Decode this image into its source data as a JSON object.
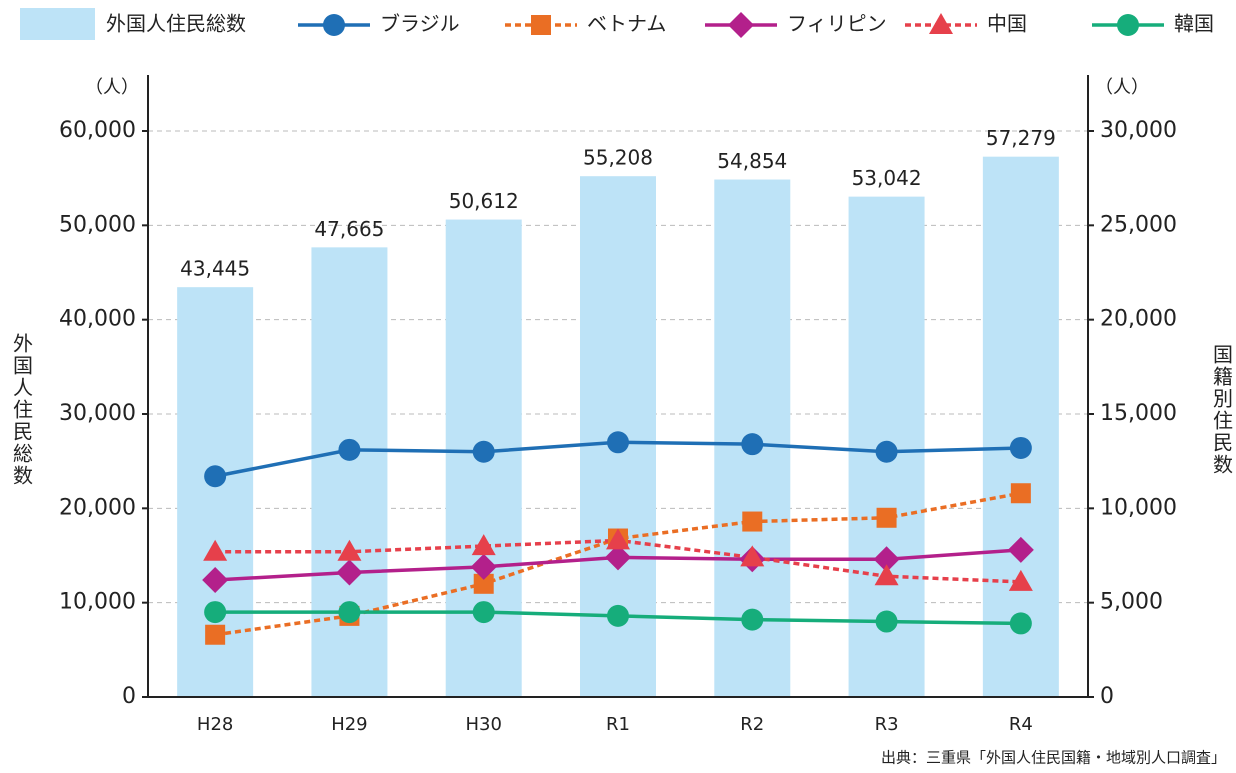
{
  "chart_data": {
    "type": "bar_line",
    "categories": [
      "H28",
      "H29",
      "H30",
      "R1",
      "R2",
      "R3",
      "R4"
    ],
    "bar": {
      "name": "外国人住民総数",
      "color": "#bde3f7",
      "values": [
        43445,
        47665,
        50612,
        55208,
        54854,
        53042,
        57279
      ],
      "value_labels": [
        "43,445",
        "47,665",
        "50,612",
        "55,208",
        "54,854",
        "53,042",
        "57,279"
      ]
    },
    "series": [
      {
        "name": "ブラジル",
        "color": "#1f6fb5",
        "marker": "circle",
        "line_style": "solid",
        "axis": "y2",
        "values": [
          11700,
          13100,
          13000,
          13500,
          13400,
          13000,
          13200
        ]
      },
      {
        "name": "ベトナム",
        "color": "#ea6e24",
        "marker": "square",
        "line_style": "dashed",
        "axis": "y2",
        "values": [
          3300,
          4300,
          6000,
          8400,
          9300,
          9500,
          10800
        ]
      },
      {
        "name": "フィリピン",
        "color": "#b3208b",
        "marker": "diamond",
        "line_style": "solid",
        "axis": "y2",
        "values": [
          6200,
          6600,
          6900,
          7400,
          7300,
          7300,
          7800
        ]
      },
      {
        "name": "中国",
        "color": "#e6404b",
        "marker": "triangle",
        "line_style": "dashed",
        "axis": "y2",
        "values": [
          7700,
          7700,
          8000,
          8300,
          7400,
          6400,
          6100
        ]
      },
      {
        "name": "韓国",
        "color": "#16ad7b",
        "marker": "circle",
        "line_style": "solid",
        "axis": "y2",
        "values": [
          4500,
          4500,
          4500,
          4300,
          4100,
          4000,
          3900
        ]
      }
    ],
    "ylabel": "外国人住民総数",
    "y2label": "国籍別住民数",
    "yunit": "（人）",
    "y2unit": "（人）",
    "ylim": [
      0,
      60000
    ],
    "yticks": [
      0,
      {
        "value": 10000,
        "label": "10,000"
      },
      {
        "value": 20000,
        "label": "20,000"
      },
      {
        "value": 30000,
        "label": "30,000"
      },
      {
        "value": 40000,
        "label": "40,000"
      },
      {
        "value": 50000,
        "label": "50,000"
      },
      {
        "value": 60000,
        "label": "60,000"
      }
    ],
    "y2lim": [
      0,
      30000
    ],
    "y2ticks": [
      0,
      {
        "value": 5000,
        "label": "5,000"
      },
      {
        "value": 10000,
        "label": "10,000"
      },
      {
        "value": 15000,
        "label": "15,000"
      },
      {
        "value": 20000,
        "label": "20,000"
      },
      {
        "value": 25000,
        "label": "25,000"
      },
      {
        "value": 30000,
        "label": "30,000"
      }
    ],
    "grid": true,
    "source": "出典：三重県「外国人住民国籍・地域別人口調査」"
  }
}
